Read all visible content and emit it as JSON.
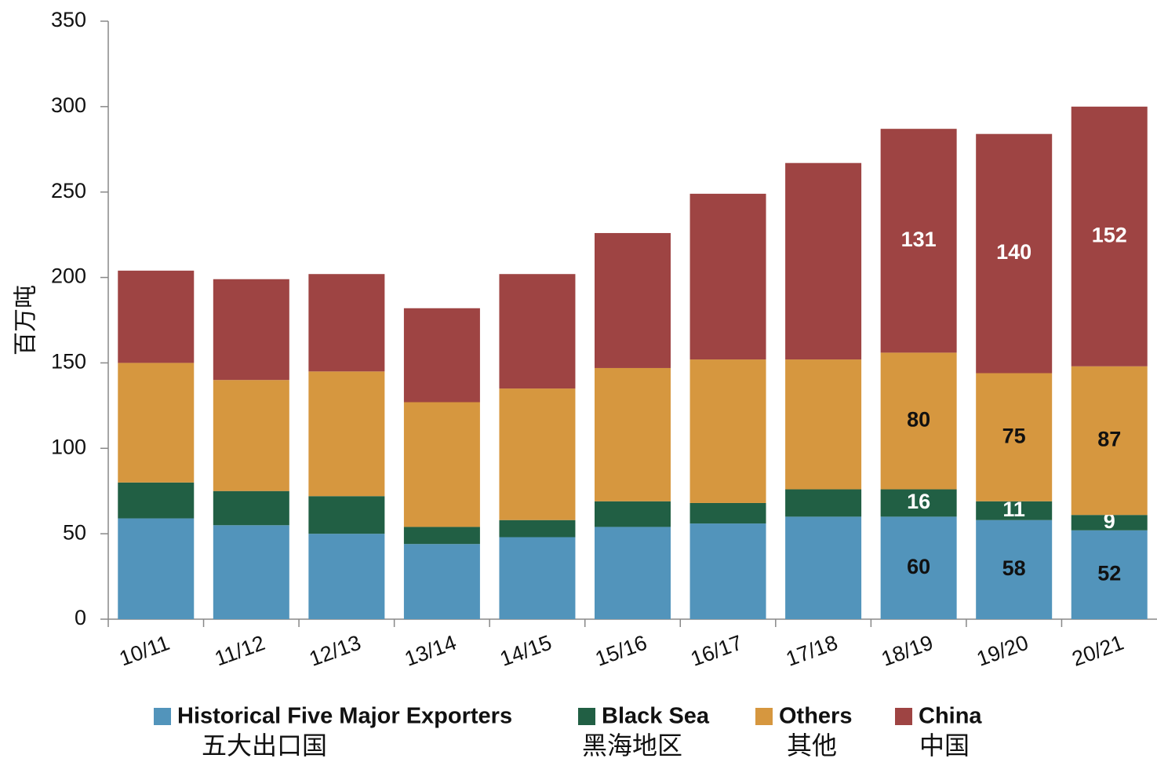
{
  "chart_data": {
    "type": "stacked_bar",
    "y_label": "百万吨",
    "categories": [
      "10/11",
      "11/12",
      "12/13",
      "13/14",
      "14/15",
      "15/16",
      "16/17",
      "17/18",
      "18/19",
      "19/20",
      "20/21"
    ],
    "series": [
      {
        "name": "Historical Five Major Exporters",
        "name_zh": "五大出口国",
        "color": "#5294bb",
        "label_color": "#111111",
        "values": [
          59,
          55,
          50,
          44,
          48,
          54,
          56,
          60,
          60,
          58,
          52
        ],
        "value_labels": [
          null,
          null,
          null,
          null,
          null,
          null,
          null,
          null,
          "60",
          "58",
          "52"
        ]
      },
      {
        "name": "Black Sea",
        "name_zh": "黑海地区",
        "color": "#215f44",
        "label_color": "#ffffff",
        "values": [
          21,
          20,
          22,
          10,
          10,
          15,
          12,
          16,
          16,
          11,
          9
        ],
        "value_labels": [
          null,
          null,
          null,
          null,
          null,
          null,
          null,
          null,
          "16",
          "11",
          "9"
        ]
      },
      {
        "name": "Others",
        "name_zh": "其他",
        "color": "#d6973f",
        "label_color": "#111111",
        "values": [
          70,
          65,
          73,
          73,
          77,
          78,
          84,
          76,
          80,
          75,
          87
        ],
        "value_labels": [
          null,
          null,
          null,
          null,
          null,
          null,
          null,
          null,
          "80",
          "75",
          "87"
        ]
      },
      {
        "name": "China",
        "name_zh": "中国",
        "color": "#9e4443",
        "label_color": "#ffffff",
        "values": [
          54,
          59,
          57,
          55,
          67,
          79,
          97,
          115,
          131,
          140,
          152
        ],
        "value_labels": [
          null,
          null,
          null,
          null,
          null,
          null,
          null,
          null,
          "131",
          "140",
          "152"
        ]
      }
    ],
    "ylim": [
      0,
      350
    ],
    "yticks": [
      0,
      50,
      100,
      150,
      200,
      250,
      300,
      350
    ],
    "grid": false
  }
}
